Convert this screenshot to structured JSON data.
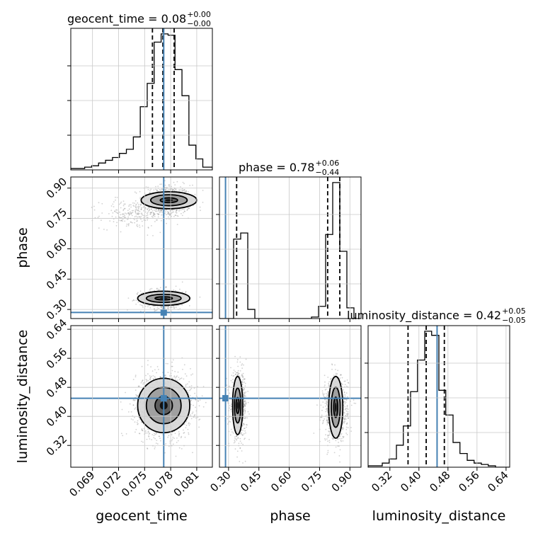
{
  "chart_data": {
    "type": "corner",
    "parameters": [
      "geocent_time",
      "phase",
      "luminosity_distance"
    ],
    "truths": {
      "geocent_time": 0.0772,
      "phase": 0.285,
      "luminosity_distance": 0.45
    },
    "colors": {
      "truth": "#4682b4",
      "hist": "#000000",
      "grid": "#c8c8c8",
      "scatter": "#7a7a7a"
    },
    "grid": true,
    "titles": [
      {
        "param": "geocent_time",
        "text": "geocent_time = 0.08",
        "sup": "+0.00",
        "sub": "−0.00"
      },
      {
        "param": "phase",
        "text": "phase = 0.78",
        "sup": "+0.06",
        "sub": "−0.44"
      },
      {
        "param": "luminosity_distance",
        "text": "luminosity_distance = 0.42",
        "sup": "+0.05",
        "sub": "−0.05"
      }
    ],
    "axes": {
      "geocent_time": {
        "label": "geocent_time",
        "range": [
          0.0665,
          0.0828
        ],
        "ticks": [
          0.069,
          0.072,
          0.075,
          0.078,
          0.081
        ],
        "tick_labels": [
          "0.069",
          "0.072",
          "0.075",
          "0.078",
          "0.081"
        ]
      },
      "phase": {
        "label": "phase",
        "range": [
          0.255,
          0.955
        ],
        "ticks": [
          0.3,
          0.45,
          0.6,
          0.75,
          0.9
        ],
        "tick_labels": [
          "0.30",
          "0.45",
          "0.60",
          "0.75",
          "0.90"
        ]
      },
      "luminosity_distance": {
        "label": "luminosity_distance",
        "range": [
          0.26,
          0.65
        ],
        "ticks": [
          0.32,
          0.4,
          0.48,
          0.56,
          0.64
        ],
        "tick_labels": [
          "0.32",
          "0.40",
          "0.48",
          "0.56",
          "0.64"
        ]
      }
    },
    "histograms": {
      "geocent_time": {
        "bin_edges": [
          0.0665,
          0.0673,
          0.0681,
          0.0689,
          0.0697,
          0.0705,
          0.0713,
          0.0721,
          0.0729,
          0.0737,
          0.0745,
          0.0753,
          0.0761,
          0.0769,
          0.0777,
          0.0785,
          0.0793,
          0.0801,
          0.0809,
          0.0817,
          0.0828
        ],
        "counts": [
          1,
          1,
          2,
          3,
          5,
          7,
          9,
          12,
          15,
          24,
          46,
          63,
          93,
          99,
          98,
          73,
          54,
          18,
          8,
          2
        ],
        "quantiles": [
          0.0759,
          0.0771,
          0.0784
        ]
      },
      "phase": {
        "bin_edges": [
          0.255,
          0.29,
          0.325,
          0.36,
          0.395,
          0.43,
          0.465,
          0.5,
          0.535,
          0.57,
          0.605,
          0.64,
          0.675,
          0.71,
          0.745,
          0.78,
          0.815,
          0.85,
          0.885,
          0.92,
          0.955
        ],
        "counts": [
          0,
          0,
          52,
          56,
          6,
          0,
          0,
          0,
          0,
          0,
          0,
          0,
          0,
          1,
          8,
          55,
          89,
          44,
          7,
          0
        ],
        "quantiles": [
          0.34,
          0.79,
          0.85
        ]
      },
      "luminosity_distance": {
        "bin_edges": [
          0.26,
          0.279,
          0.299,
          0.318,
          0.338,
          0.357,
          0.377,
          0.396,
          0.416,
          0.435,
          0.455,
          0.474,
          0.494,
          0.513,
          0.533,
          0.552,
          0.572,
          0.591,
          0.611,
          0.63,
          0.65
        ],
        "counts": [
          1,
          1,
          3,
          6,
          16,
          30,
          55,
          78,
          99,
          96,
          56,
          38,
          18,
          10,
          5,
          3,
          2,
          1,
          0,
          0
        ],
        "quantiles": [
          0.37,
          0.42,
          0.47
        ]
      }
    },
    "scatter_clusters": [
      {
        "x": "geocent_time",
        "y": "phase",
        "cx": 0.0775,
        "cy": 0.835,
        "sx": 0.0014,
        "sy": 0.04,
        "weight": 0.45
      },
      {
        "x": "geocent_time",
        "y": "phase",
        "cx": 0.0735,
        "cy": 0.77,
        "sx": 0.0018,
        "sy": 0.035,
        "weight": 0.15
      },
      {
        "x": "geocent_time",
        "y": "phase",
        "cx": 0.0772,
        "cy": 0.35,
        "sx": 0.0013,
        "sy": 0.025,
        "weight": 0.4
      },
      {
        "x": "geocent_time",
        "y": "luminosity_distance",
        "cx": 0.0772,
        "cy": 0.43,
        "sx": 0.0016,
        "sy": 0.045,
        "weight": 1.0
      },
      {
        "x": "phase",
        "y": "luminosity_distance",
        "cx": 0.35,
        "cy": 0.43,
        "sx": 0.02,
        "sy": 0.045,
        "weight": 0.45
      },
      {
        "x": "phase",
        "y": "luminosity_distance",
        "cx": 0.83,
        "cy": 0.42,
        "sx": 0.03,
        "sy": 0.045,
        "weight": 0.55
      }
    ],
    "contours": [
      {
        "x": "geocent_time",
        "y": "phase",
        "cx": 0.0778,
        "cy": 0.84,
        "levels": [
          [
            0.001,
            0.012
          ],
          [
            0.0021,
            0.027
          ],
          [
            0.0032,
            0.042
          ]
        ]
      },
      {
        "x": "geocent_time",
        "y": "phase",
        "cx": 0.0772,
        "cy": 0.355,
        "levels": [
          [
            0.001,
            0.008
          ],
          [
            0.002,
            0.02
          ],
          [
            0.003,
            0.035
          ]
        ]
      },
      {
        "x": "geocent_time",
        "y": "luminosity_distance",
        "cx": 0.0772,
        "cy": 0.43,
        "levels": [
          [
            0.001,
            0.025
          ],
          [
            0.002,
            0.05
          ],
          [
            0.003,
            0.075
          ]
        ]
      },
      {
        "x": "phase",
        "y": "luminosity_distance",
        "cx": 0.345,
        "cy": 0.43,
        "levels": [
          [
            0.008,
            0.022
          ],
          [
            0.016,
            0.048
          ],
          [
            0.025,
            0.08
          ]
        ]
      },
      {
        "x": "phase",
        "y": "luminosity_distance",
        "cx": 0.83,
        "cy": 0.425,
        "levels": [
          [
            0.01,
            0.028
          ],
          [
            0.022,
            0.055
          ],
          [
            0.035,
            0.085
          ]
        ]
      }
    ]
  }
}
